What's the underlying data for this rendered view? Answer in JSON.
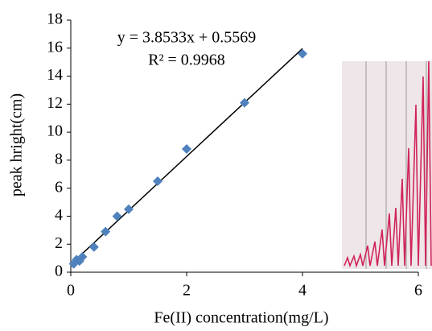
{
  "chart_data": {
    "type": "scatter",
    "xlabel": "Fe(II) concentration(mg/L)",
    "ylabel": "peak hright(cm)",
    "annotations": [
      "y = 3.8533x + 0.5569",
      "R² = 0.9968"
    ],
    "series": [
      {
        "color": "#4f81bd",
        "x": [
          0.05,
          0.1,
          0.15,
          0.2,
          0.4,
          0.6,
          0.8,
          1.0,
          1.5,
          2.0,
          3.0,
          4.0
        ],
        "values": [
          0.6,
          0.9,
          0.8,
          1.1,
          1.8,
          2.9,
          4.0,
          4.5,
          6.5,
          8.8,
          12.1,
          15.6
        ]
      }
    ],
    "trendline": {
      "color": "#000000",
      "x": [
        0.05,
        4.0
      ],
      "values": [
        0.75,
        15.97
      ]
    },
    "xlim": [
      0,
      6
    ],
    "xticks": [
      0,
      2,
      4,
      6
    ],
    "ylim": [
      0,
      18
    ],
    "yticks": [
      0,
      2,
      4,
      6,
      8,
      10,
      12,
      14,
      16,
      18
    ]
  }
}
